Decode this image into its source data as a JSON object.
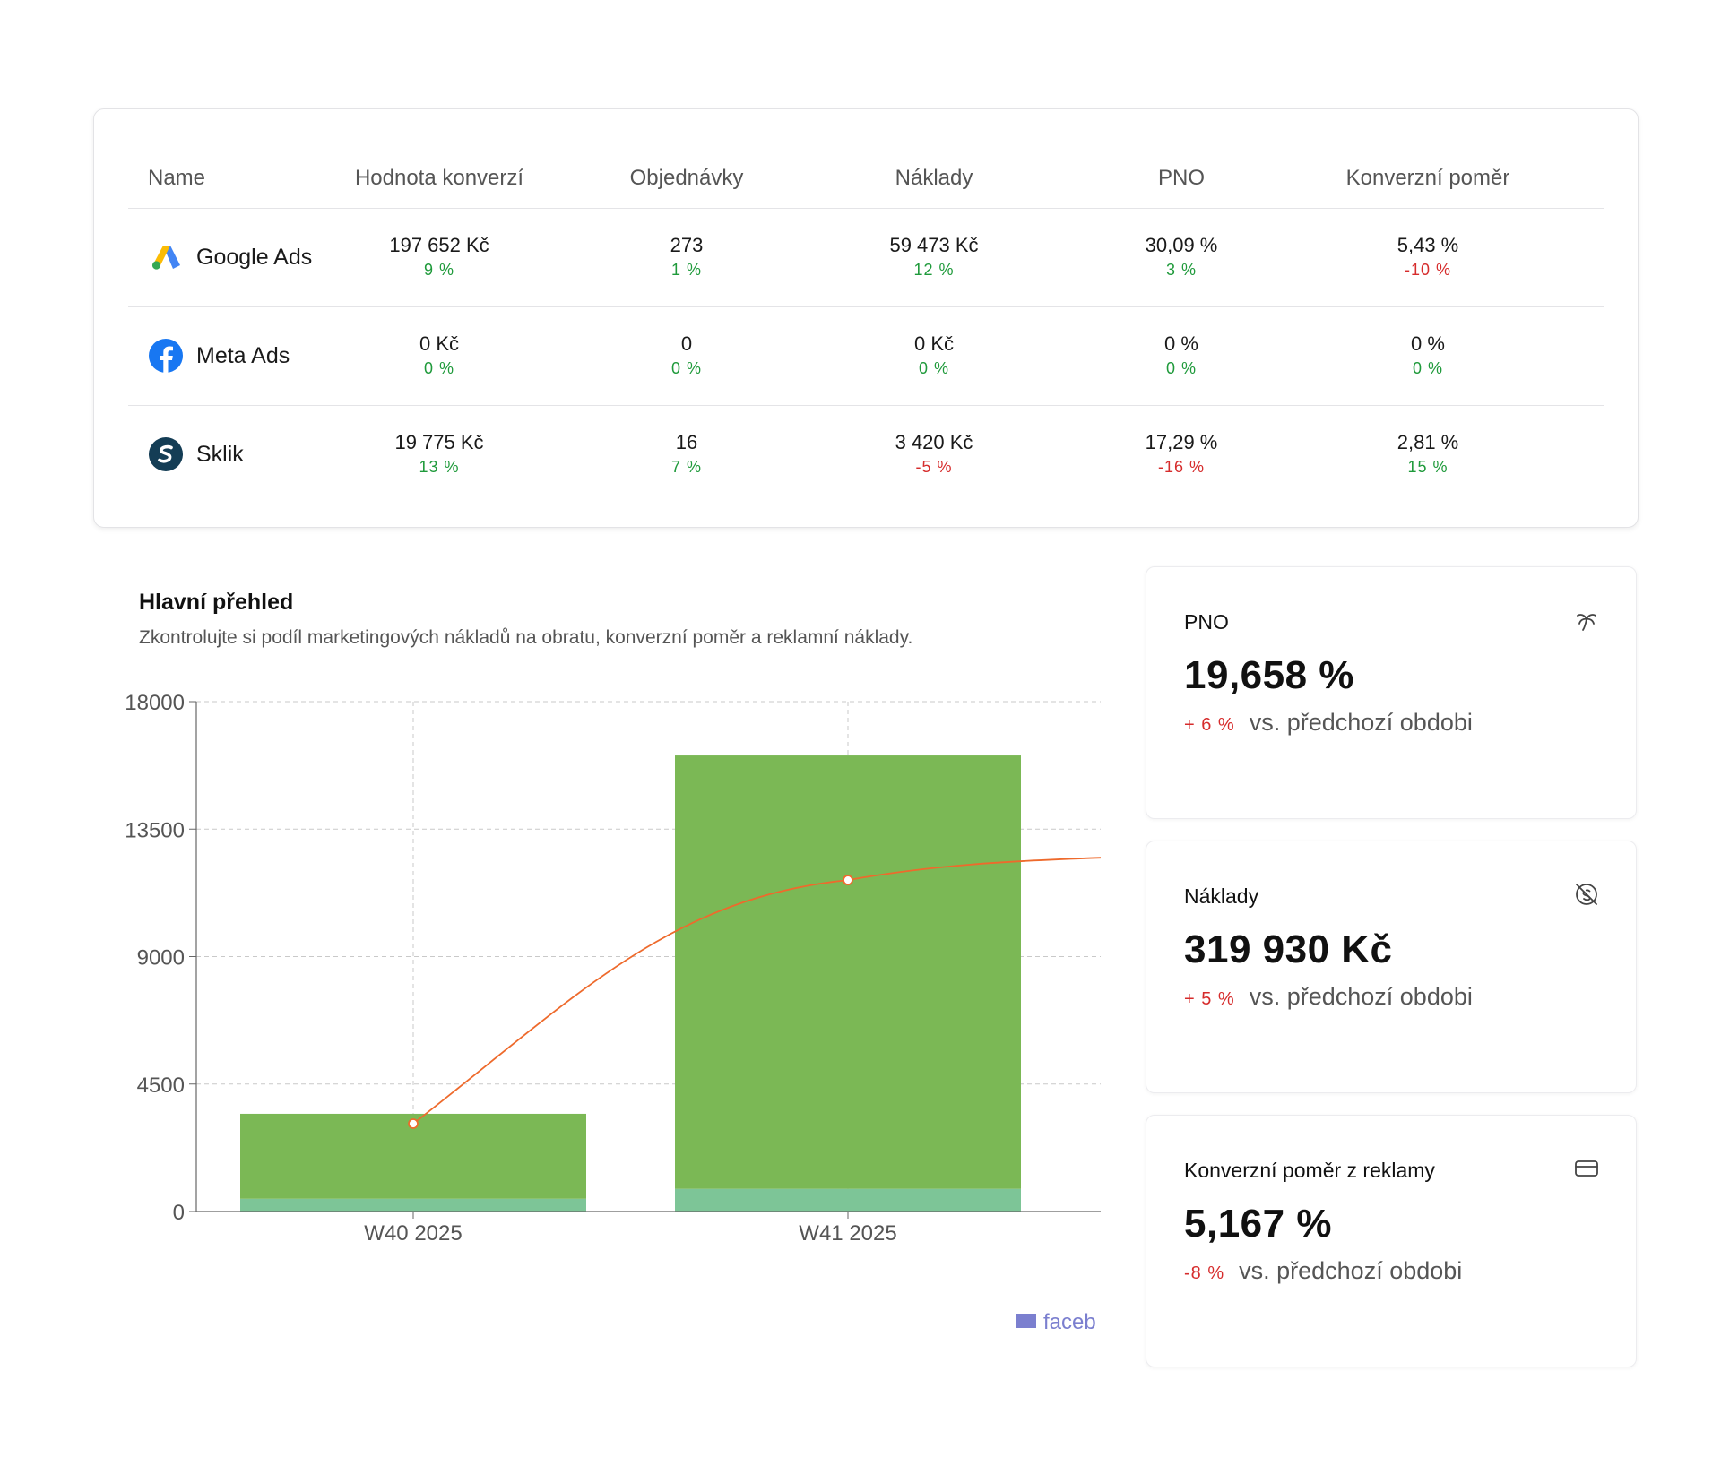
{
  "table": {
    "headers": [
      "Name",
      "Hodnota konverzí",
      "Objednávky",
      "Náklady",
      "PNO",
      "Konverzní poměr"
    ],
    "rows": [
      {
        "name": "Google Ads",
        "logo_icon": "google-ads-icon",
        "cells": [
          {
            "value": "197 652 Kč",
            "change": "9 %",
            "trend": "pos"
          },
          {
            "value": "273",
            "change": "1 %",
            "trend": "pos"
          },
          {
            "value": "59 473 Kč",
            "change": "12 %",
            "trend": "pos"
          },
          {
            "value": "30,09 %",
            "change": "3 %",
            "trend": "pos"
          },
          {
            "value": "5,43 %",
            "change": "-10 %",
            "trend": "neg"
          }
        ]
      },
      {
        "name": "Meta Ads",
        "logo_icon": "meta-icon",
        "cells": [
          {
            "value": "0 Kč",
            "change": "0 %",
            "trend": "pos"
          },
          {
            "value": "0",
            "change": "0 %",
            "trend": "pos"
          },
          {
            "value": "0 Kč",
            "change": "0 %",
            "trend": "pos"
          },
          {
            "value": "0 %",
            "change": "0 %",
            "trend": "pos"
          },
          {
            "value": "0 %",
            "change": "0 %",
            "trend": "pos"
          }
        ]
      },
      {
        "name": "Sklik",
        "logo_icon": "sklik-icon",
        "cells": [
          {
            "value": "19 775 Kč",
            "change": "13 %",
            "trend": "pos"
          },
          {
            "value": "16",
            "change": "7 %",
            "trend": "pos"
          },
          {
            "value": "3 420 Kč",
            "change": "-5 %",
            "trend": "neg"
          },
          {
            "value": "17,29 %",
            "change": "-16 %",
            "trend": "neg"
          },
          {
            "value": "2,81 %",
            "change": "15 %",
            "trend": "pos"
          }
        ]
      }
    ]
  },
  "overview": {
    "title": "Hlavní přehled",
    "subtitle": "Zkontrolujte si podíl marketingových nákladů na obratu, konverzní poměr a reklamní náklady."
  },
  "chart_data": {
    "type": "bar",
    "stacked": true,
    "categories": [
      "W40 2025",
      "W41 2025"
    ],
    "y_ticks": [
      "0",
      "4500",
      "9000",
      "13500",
      "18000"
    ],
    "ylim": [
      0,
      18000
    ],
    "grid": true,
    "series": [
      {
        "values": [
          450,
          800
        ],
        "color": "#7dc597",
        "kind": "bar"
      },
      {
        "values": [
          3000,
          15300
        ],
        "color": "#7bb855",
        "kind": "bar"
      },
      {
        "values": [
          3100,
          11700
        ],
        "color": "#ee6a2c",
        "kind": "line"
      }
    ],
    "line_tail_value": 12500,
    "legend": [
      {
        "label": "faceb",
        "color": "#7b7fcf"
      }
    ],
    "legend_position": "bottom-right"
  },
  "kpis": [
    {
      "title": "PNO",
      "value": "19,658 %",
      "delta": "+ 6 %",
      "vs": "vs. předchozí obdobi",
      "icon": "palm-tree-icon"
    },
    {
      "title": "Náklady",
      "value": "319 930 Kč",
      "delta": "+ 5 %",
      "vs": "vs. předchozí obdobi",
      "icon": "coin-off-icon"
    },
    {
      "title": "Konverzní poměr z reklamy",
      "value": "5,167 %",
      "delta": "-8 %",
      "vs": "vs. předchozí obdobi",
      "icon": "credit-card-icon"
    }
  ]
}
